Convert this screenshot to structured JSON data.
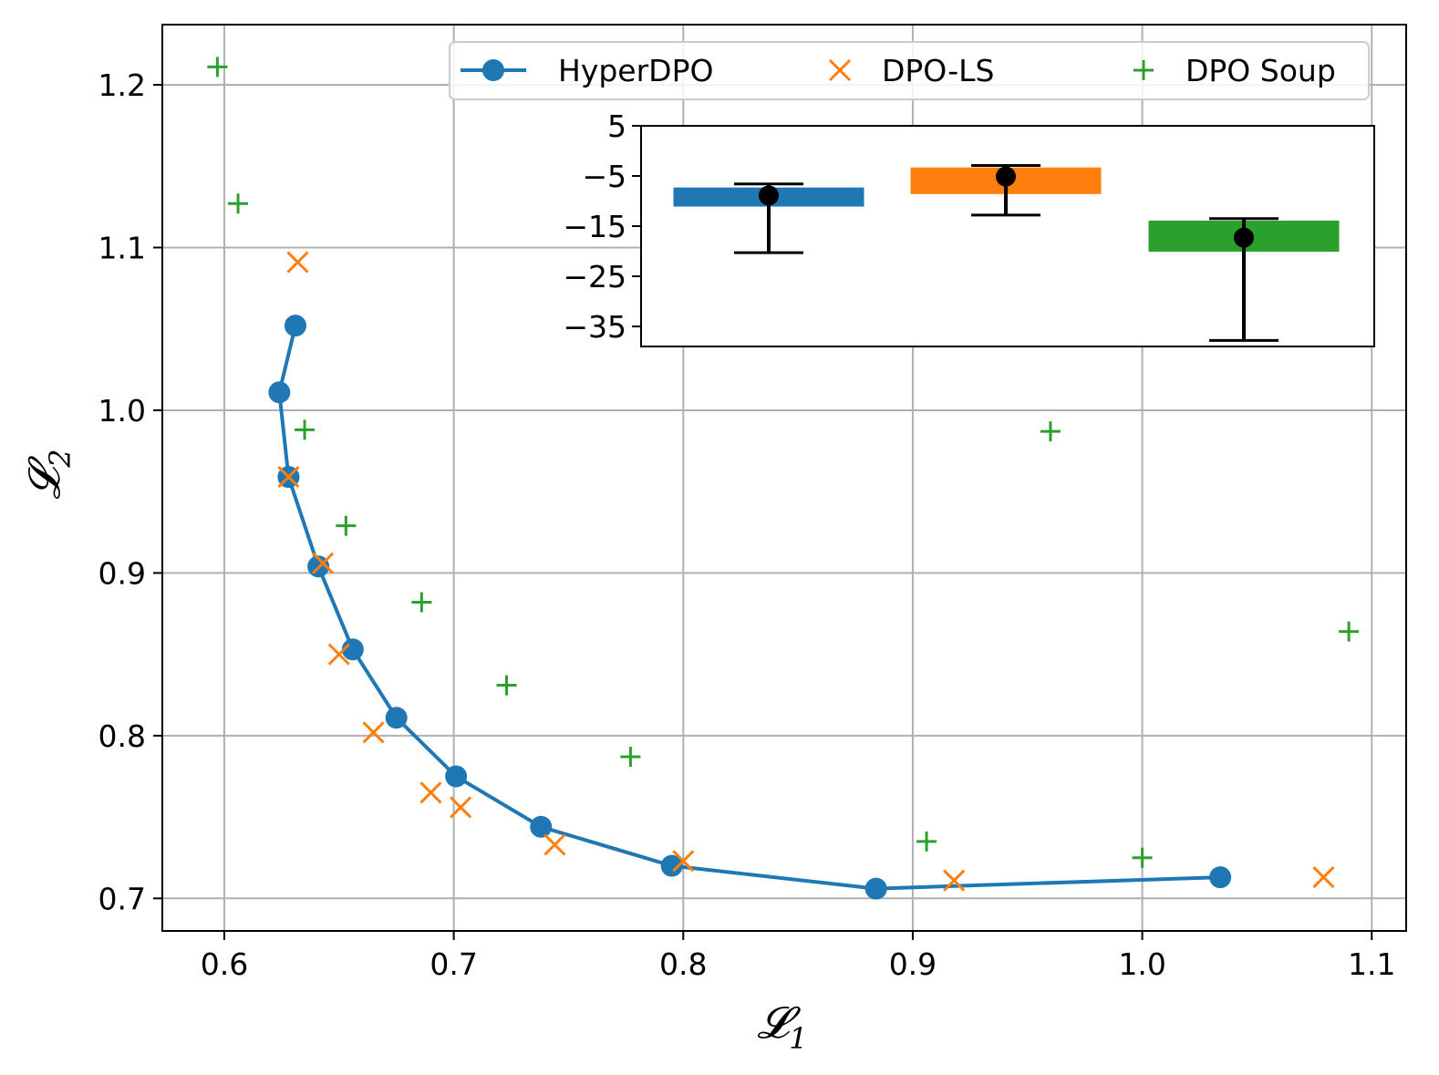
{
  "chart_data": [
    {
      "type": "scatter",
      "xlabel": "𝓛1",
      "ylabel": "𝓛2",
      "xlim": [
        0.573,
        1.115
      ],
      "ylim": [
        0.68,
        1.237
      ],
      "xticks": [
        "0.6",
        "0.7",
        "0.8",
        "0.9",
        "1.0",
        "1.1"
      ],
      "yticks": [
        "0.7",
        "0.8",
        "0.9",
        "1.0",
        "1.1",
        "1.2"
      ],
      "grid": true,
      "legend_position": "top-right",
      "series": [
        {
          "name": "HyperDPO",
          "marker": "circle",
          "line": true,
          "color": "#1f77b4",
          "points": [
            [
              0.631,
              1.052
            ],
            [
              0.624,
              1.011
            ],
            [
              0.628,
              0.959
            ],
            [
              0.641,
              0.904
            ],
            [
              0.656,
              0.853
            ],
            [
              0.675,
              0.811
            ],
            [
              0.701,
              0.775
            ],
            [
              0.738,
              0.744
            ],
            [
              0.795,
              0.72
            ],
            [
              0.884,
              0.706
            ],
            [
              1.034,
              0.713
            ]
          ]
        },
        {
          "name": "DPO-LS",
          "marker": "x",
          "line": false,
          "color": "#ff7f0e",
          "points": [
            [
              0.632,
              1.091
            ],
            [
              0.628,
              0.959
            ],
            [
              0.643,
              0.906
            ],
            [
              0.65,
              0.85
            ],
            [
              0.665,
              0.802
            ],
            [
              0.69,
              0.765
            ],
            [
              0.703,
              0.756
            ],
            [
              0.744,
              0.733
            ],
            [
              0.8,
              0.723
            ],
            [
              0.918,
              0.711
            ],
            [
              1.079,
              0.713
            ]
          ]
        },
        {
          "name": "DPO Soup",
          "marker": "plus",
          "line": false,
          "color": "#2ca02c",
          "points": [
            [
              0.597,
              1.211
            ],
            [
              0.606,
              1.127
            ],
            [
              0.635,
              0.988
            ],
            [
              0.653,
              0.929
            ],
            [
              0.686,
              0.882
            ],
            [
              0.723,
              0.831
            ],
            [
              0.777,
              0.787
            ],
            [
              0.906,
              0.735
            ],
            [
              0.96,
              0.987
            ],
            [
              1.0,
              0.725
            ],
            [
              1.09,
              0.864
            ]
          ]
        }
      ]
    },
    {
      "type": "bar",
      "inset": true,
      "ylim": [
        -39,
        5
      ],
      "yticks": [
        "5",
        "−5",
        "−15",
        "−25",
        "−35"
      ],
      "bars": [
        {
          "color": "#1f77b4",
          "top": -7.3,
          "bottom": -11.1,
          "point": -8.9,
          "err_high": -6.6,
          "err_low": -20.3
        },
        {
          "color": "#ff7f0e",
          "top": -3.3,
          "bottom": -8.6,
          "point": -5.1,
          "err_high": -2.9,
          "err_low": -12.8
        },
        {
          "color": "#2ca02c",
          "top": -13.9,
          "bottom": -20.1,
          "point": -17.3,
          "err_high": -13.5,
          "err_low": -37.8
        }
      ]
    }
  ]
}
